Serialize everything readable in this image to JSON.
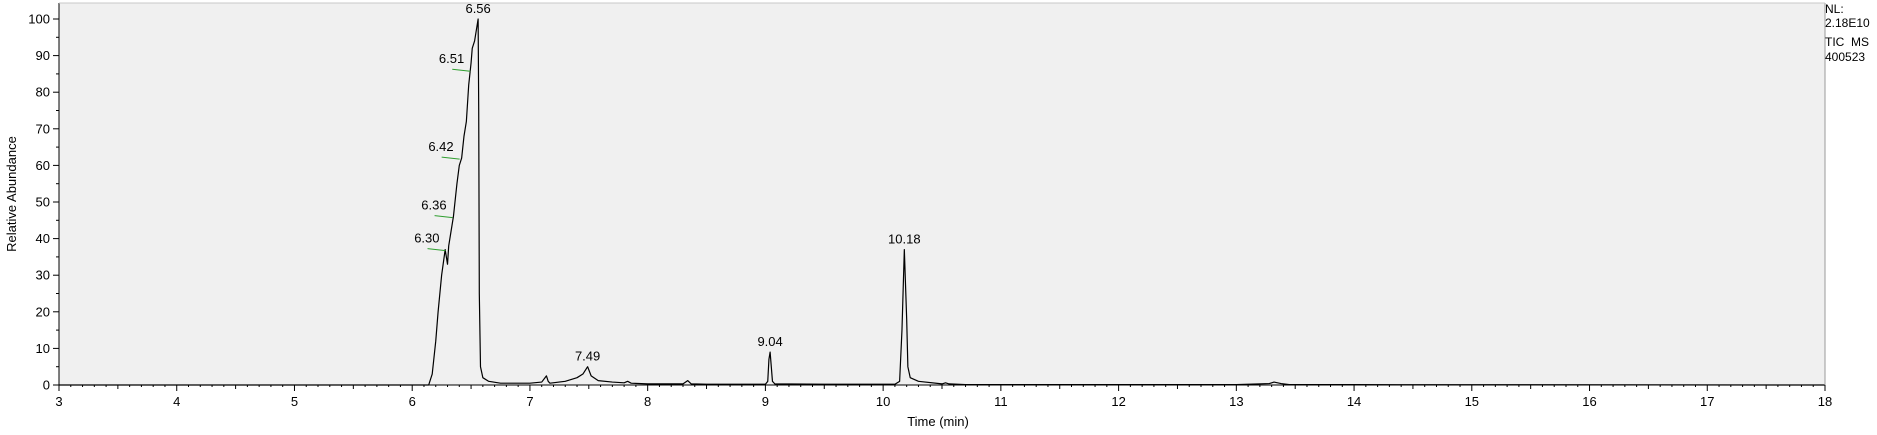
{
  "chart_data": {
    "type": "line",
    "title": "",
    "xlabel": "Time (min)",
    "ylabel": "Relative Abundance",
    "xlim": [
      3,
      18
    ],
    "ylim": [
      0,
      100
    ],
    "x_ticks": [
      "3",
      "4",
      "5",
      "6",
      "7",
      "8",
      "9",
      "10",
      "11",
      "12",
      "13",
      "14",
      "15",
      "16",
      "17",
      "18"
    ],
    "y_ticks": [
      "0",
      "10",
      "20",
      "30",
      "40",
      "50",
      "60",
      "70",
      "80",
      "90",
      "100"
    ],
    "info_lines": [
      "NL:",
      "2.18E10",
      "TIC  MS",
      "400523"
    ],
    "colors": {
      "plot_background": "#f0f0f0",
      "trace": "#000000",
      "peak_marker": "#2e9e2e"
    },
    "series": [
      {
        "x": [
          3.0,
          5.0,
          6.14,
          6.17,
          6.2,
          6.22,
          6.25,
          6.28,
          6.3,
          6.31,
          6.33,
          6.35,
          6.37,
          6.38,
          6.4,
          6.42,
          6.44,
          6.46,
          6.48,
          6.5,
          6.51,
          6.53,
          6.55,
          6.56,
          6.565,
          6.57,
          6.58,
          6.6,
          6.65,
          6.75,
          7.0,
          7.1,
          7.14,
          7.155,
          7.17,
          7.3,
          7.4,
          7.45,
          7.49,
          7.52,
          7.58,
          7.7,
          7.8,
          7.83,
          7.86,
          8.0,
          8.3,
          8.34,
          8.37,
          8.5,
          9.0,
          9.02,
          9.03,
          9.04,
          9.05,
          9.06,
          9.08,
          9.5,
          10.1,
          10.14,
          10.16,
          10.18,
          10.2,
          10.21,
          10.23,
          10.3,
          10.5,
          10.53,
          10.56,
          10.7,
          13.0,
          13.28,
          13.32,
          13.38,
          13.45,
          14.0,
          18.0
        ],
        "y": [
          0,
          0,
          0,
          3,
          12,
          20,
          30,
          37,
          33,
          38,
          42,
          46,
          52,
          55,
          60,
          62,
          68,
          72,
          82,
          88,
          92,
          94,
          98,
          100,
          75,
          25,
          5,
          2,
          1,
          0.5,
          0.5,
          0.8,
          2.5,
          1,
          0.5,
          1,
          2,
          3,
          5,
          2.5,
          1.2,
          0.8,
          0.6,
          1,
          0.5,
          0.3,
          0.3,
          1.2,
          0.3,
          0.2,
          0.2,
          1,
          7,
          9,
          5,
          1,
          0.3,
          0.2,
          0.2,
          1,
          15,
          37,
          18,
          5,
          2,
          1,
          0.3,
          0.6,
          0.3,
          0.1,
          0.1,
          0.4,
          0.8,
          0.4,
          0.1,
          0.1,
          0
        ]
      }
    ],
    "peak_labels": [
      {
        "x": 6.56,
        "y": 100,
        "label": "6.56"
      },
      {
        "x": 6.51,
        "y": 86,
        "label": "6.51"
      },
      {
        "x": 6.42,
        "y": 62,
        "label": "6.42"
      },
      {
        "x": 6.36,
        "y": 46,
        "label": "6.36"
      },
      {
        "x": 6.3,
        "y": 37,
        "label": "6.30"
      },
      {
        "x": 7.49,
        "y": 5,
        "label": "7.49"
      },
      {
        "x": 9.04,
        "y": 9,
        "label": "9.04"
      },
      {
        "x": 10.18,
        "y": 37,
        "label": "10.18"
      }
    ],
    "grid": false,
    "legend": "none"
  }
}
